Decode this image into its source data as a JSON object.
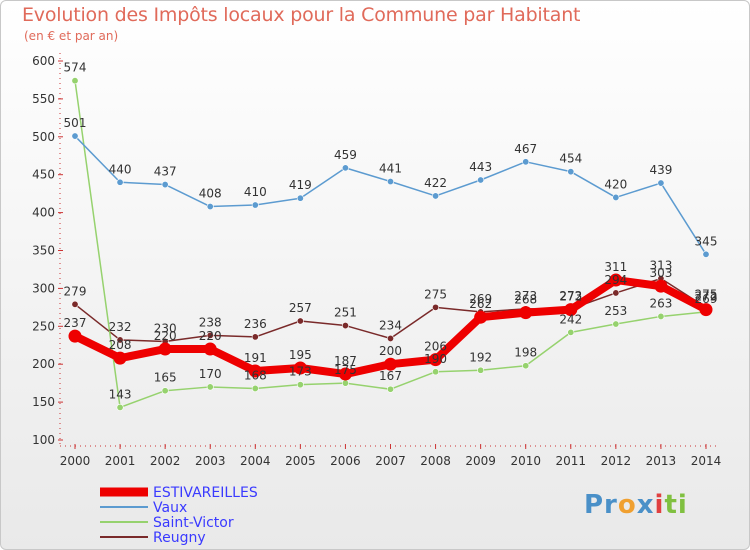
{
  "title": "Evolution des Impôts locaux pour la Commune par Habitant",
  "subtitle": "(en € et par an)",
  "logo": {
    "text": "Proxiti",
    "parts": [
      "Pr",
      "o",
      "x",
      "i",
      "ti"
    ]
  },
  "chart_data": {
    "type": "line",
    "x": [
      2000,
      2001,
      2002,
      2003,
      2004,
      2005,
      2006,
      2007,
      2008,
      2009,
      2010,
      2011,
      2012,
      2013,
      2014
    ],
    "ylim": [
      100,
      600
    ],
    "yticks": [
      100,
      150,
      200,
      250,
      300,
      350,
      400,
      450,
      500,
      550,
      600
    ],
    "grid": false,
    "legend_position": "bottom-left",
    "series": [
      {
        "name": "Reugny",
        "color": "#7a2a2a",
        "values": [
          279,
          232,
          230,
          238,
          236,
          257,
          251,
          234,
          275,
          269,
          273,
          273,
          294,
          313,
          275
        ]
      },
      {
        "name": "Saint-Victor",
        "color": "#96d26e",
        "values": [
          574,
          143,
          165,
          170,
          168,
          173,
          175,
          167,
          190,
          192,
          198,
          242,
          253,
          263,
          269
        ]
      },
      {
        "name": "Vaux",
        "color": "#5c9bd0",
        "values": [
          501,
          440,
          437,
          408,
          410,
          419,
          459,
          441,
          422,
          443,
          467,
          454,
          420,
          439,
          345
        ]
      },
      {
        "name": "ESTIVAREILLES",
        "color": "#ee0000",
        "values": [
          237,
          208,
          220,
          220,
          191,
          195,
          187,
          200,
          206,
          262,
          268,
          272,
          311,
          303,
          272
        ]
      }
    ],
    "legend_order": [
      "ESTIVAREILLES",
      "Vaux",
      "Saint-Victor",
      "Reugny"
    ]
  }
}
